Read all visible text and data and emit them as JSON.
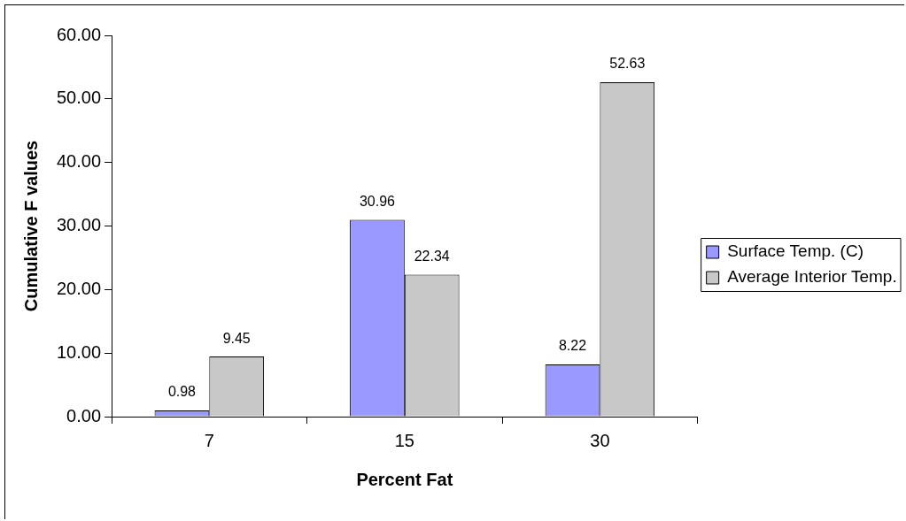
{
  "chart_data": {
    "type": "bar",
    "xlabel": "Percent Fat",
    "ylabel": "Cumulative F values",
    "categories": [
      "7",
      "15",
      "30"
    ],
    "series": [
      {
        "name": "Surface Temp. (C)",
        "color": "#9999ff",
        "values": [
          0.98,
          30.96,
          8.22
        ]
      },
      {
        "name": "Average Interior Temp.",
        "color": "#c8c8c8",
        "values": [
          9.45,
          22.34,
          52.63
        ]
      }
    ],
    "ylim": [
      0,
      60
    ],
    "yticks": [
      {
        "value": 0,
        "label": "0.00"
      },
      {
        "value": 10,
        "label": "10.00"
      },
      {
        "value": 20,
        "label": "20.00"
      },
      {
        "value": 30,
        "label": "30.00"
      },
      {
        "value": 40,
        "label": "40.00"
      },
      {
        "value": 50,
        "label": "50.00"
      },
      {
        "value": 60,
        "label": "60.00"
      }
    ],
    "grid": false,
    "legend": "right",
    "data_labels": true
  }
}
